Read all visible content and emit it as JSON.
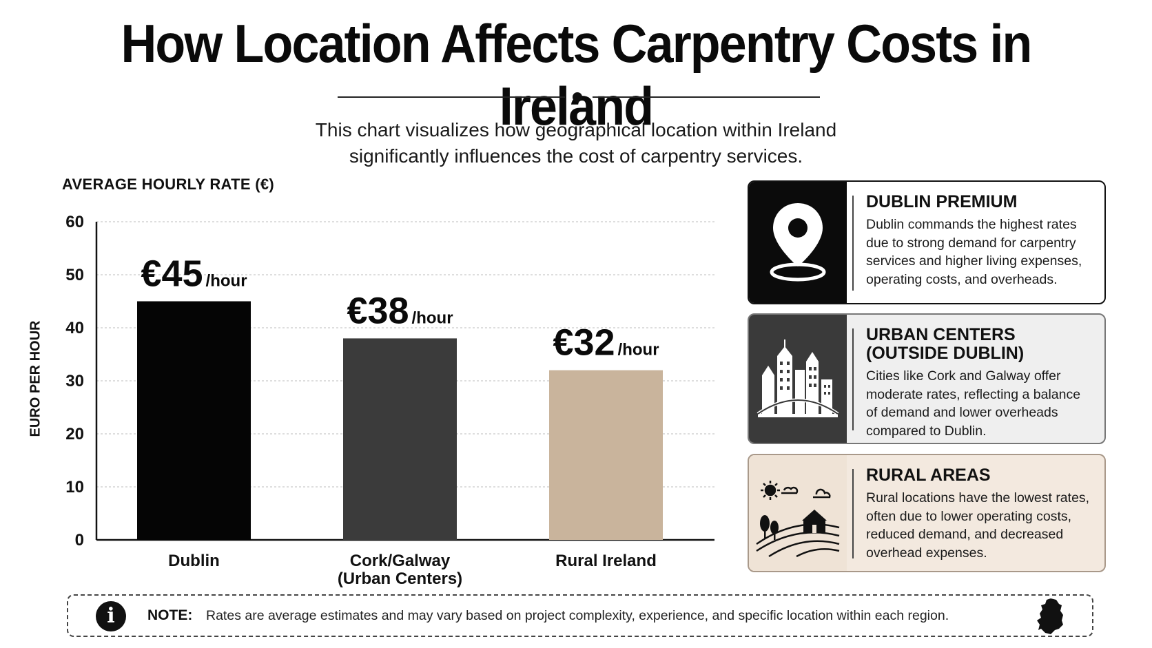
{
  "title": "How Location Affects Carpentry Costs in Ireland",
  "subtitle_line1": "This chart visualizes how geographical location within Ireland",
  "subtitle_line2": "significantly influences the cost of carpentry services.",
  "chart_data": {
    "type": "bar",
    "title": "How Location Affects Carpentry Costs in Ireland",
    "top_label": "AVERAGE HOURLY RATE (€)",
    "ylabel": "EURO PER HOUR",
    "ylim": [
      0,
      60
    ],
    "yticks": [
      0,
      10,
      20,
      30,
      40,
      50,
      60
    ],
    "grid": true,
    "categories": [
      {
        "line1": "Dublin",
        "line2": ""
      },
      {
        "line1": "Cork/Galway",
        "line2": "(Urban Centers)"
      },
      {
        "line1": "Rural Ireland",
        "line2": ""
      }
    ],
    "values": [
      45,
      38,
      32
    ],
    "value_labels": [
      "€45",
      "€38",
      "€32"
    ],
    "value_unit": "/hour",
    "colors": [
      "#050505",
      "#3b3b3b",
      "#c9b49c"
    ]
  },
  "panels": {
    "dublin": {
      "title": "DUBLIN PREMIUM",
      "text": "Dublin commands the highest rates due to strong demand for carpentry services and higher living expenses, operating costs, and overheads.",
      "icon": "location-pin-icon"
    },
    "urban": {
      "title_line1": "URBAN CENTERS",
      "title_line2": "(OUTSIDE DUBLIN)",
      "text": "Cities like Cork and Galway offer moderate rates, reflecting a balance of demand and lower overheads compared to Dublin.",
      "icon": "city-skyline-icon"
    },
    "rural": {
      "title": "RURAL AREAS",
      "text": "Rural locations have the lowest rates, often due to lower operating costs, reduced demand, and decreased overhead expenses.",
      "icon": "farmhouse-landscape-icon"
    }
  },
  "note": {
    "label": "NOTE:",
    "text": "Rates are average estimates and may vary based on project complexity, experience, and specific location within each region.",
    "icon": "info-icon",
    "map_icon": "ireland-map-icon"
  }
}
